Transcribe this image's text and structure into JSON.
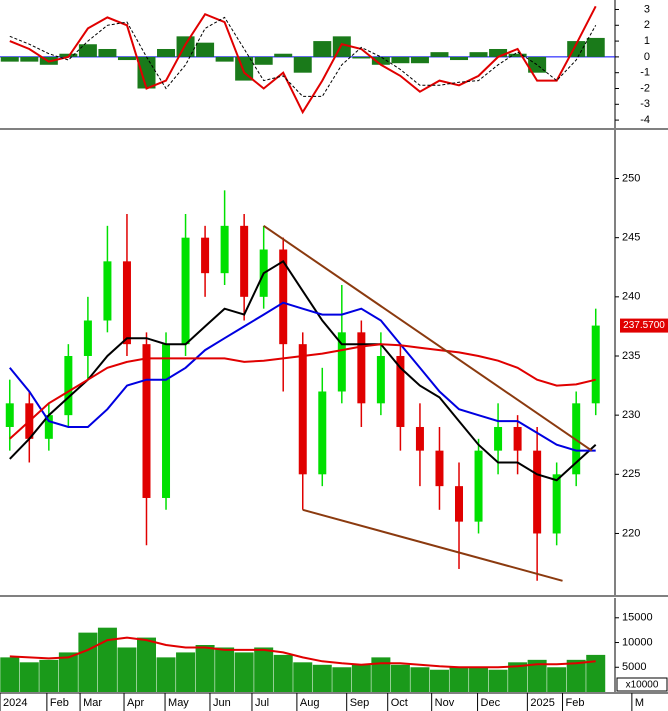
{
  "chart_data": [
    {
      "type": "macd",
      "ylim": [
        -4.5,
        3.6
      ],
      "yticks": [
        3,
        2,
        1,
        0,
        -1,
        -2,
        -3,
        -4
      ],
      "zero_line_color": "#0000ff",
      "series": [
        {
          "kind": "bar",
          "color": "#1a7a1a",
          "values": [
            -0.3,
            -0.3,
            -0.5,
            0.2,
            0.8,
            0.5,
            -0.2,
            -2,
            0.5,
            1.3,
            0.9,
            -0.3,
            -1.5,
            -0.5,
            0.2,
            -1,
            1,
            1.3,
            -0.1,
            -0.5,
            -0.4,
            -0.4,
            0.3,
            -0.2,
            0.3,
            0.5,
            0.2,
            -1,
            0,
            1,
            1.2
          ]
        },
        {
          "kind": "line",
          "color": "#e00000",
          "values": [
            1,
            0.5,
            -0.3,
            0,
            1.8,
            2.5,
            2,
            -2,
            -1.5,
            0.8,
            2.7,
            2.2,
            -1,
            -2,
            -1,
            -3.5,
            -1.5,
            0.8,
            0.5,
            -0.5,
            -1.2,
            -2.2,
            -1.5,
            -1.8,
            -1.2,
            0,
            0.5,
            -1.5,
            -1.5,
            0.8,
            3.2
          ]
        },
        {
          "kind": "dashed",
          "color": "#000000",
          "values": [
            1.3,
            0.8,
            0.2,
            -0.2,
            1,
            2,
            2.2,
            0,
            -2,
            -0.5,
            1.8,
            2.5,
            0.5,
            -1.5,
            -1.2,
            -2.5,
            -2.5,
            -0.5,
            0.6,
            0,
            -0.8,
            -1.8,
            -1.8,
            -1.6,
            -1.5,
            -0.5,
            0.3,
            -0.5,
            -1.5,
            -0.2,
            2
          ]
        }
      ]
    },
    {
      "type": "candlestick",
      "ylim": [
        214.8,
        254.1
      ],
      "yticks": [
        220,
        225,
        230,
        235,
        240,
        245,
        250
      ],
      "up_color": "#00e000",
      "down_color": "#e00000",
      "open": [
        229,
        231,
        228,
        230,
        235,
        238,
        243,
        236,
        223,
        236,
        245,
        242,
        246,
        240,
        244,
        236,
        225,
        232,
        237,
        231,
        235,
        229,
        227,
        224,
        221,
        227,
        229,
        227,
        220,
        225,
        231
      ],
      "high": [
        233,
        232,
        231,
        236,
        240,
        246,
        247,
        237,
        237,
        247,
        246,
        249,
        247,
        246,
        245,
        237,
        234,
        241,
        238,
        237,
        236,
        231,
        229,
        226,
        228,
        231,
        230,
        229,
        226,
        232,
        239
      ],
      "low": [
        227,
        226,
        227,
        229,
        233,
        237,
        235,
        219,
        222,
        235,
        240,
        241,
        238,
        239,
        232,
        222,
        224,
        231,
        229,
        230,
        227,
        224,
        222,
        217,
        220,
        225,
        225,
        216,
        219,
        224,
        230
      ],
      "close": [
        231,
        228,
        230,
        235,
        238,
        243,
        236,
        223,
        236,
        245,
        242,
        246,
        240,
        244,
        236,
        225,
        232,
        237,
        231,
        235,
        229,
        227,
        224,
        221,
        227,
        229,
        227,
        220,
        225,
        231,
        237.57
      ],
      "last_price": 237.57,
      "last_price_label": "237.5700",
      "last_price_color": "#e00000",
      "series": [
        {
          "color": "#000000",
          "values": [
            226.3,
            228,
            230,
            231.5,
            233,
            235,
            236.5,
            236.5,
            236,
            236,
            237.5,
            239,
            238.5,
            242,
            243,
            240.5,
            238,
            236,
            236,
            236,
            234,
            232.5,
            231.5,
            229.5,
            227.5,
            226,
            226,
            225,
            224.5,
            226,
            227.5
          ]
        },
        {
          "color": "#0000e0",
          "values": [
            234,
            232,
            229.5,
            229,
            229,
            230.5,
            232.5,
            233,
            233,
            234,
            235.5,
            236.5,
            237.5,
            238.5,
            239.5,
            239,
            238.5,
            238.5,
            239,
            238,
            236,
            234,
            232,
            230.5,
            230,
            229.5,
            229.5,
            228.5,
            227.5,
            227,
            227
          ]
        },
        {
          "color": "#e00000",
          "values": [
            228,
            229.5,
            231,
            232,
            233,
            234,
            234.5,
            234.8,
            234.8,
            234.8,
            234.8,
            234.8,
            234.5,
            234.6,
            234.8,
            235,
            235.2,
            235.5,
            235.8,
            236,
            235.9,
            235.7,
            235.5,
            235.3,
            235,
            234.6,
            234,
            233,
            232.5,
            232.6,
            233
          ]
        }
      ],
      "trendlines": [
        {
          "color": "#8b3a0f",
          "x": [
            27,
            60.6
          ],
          "y": [
            246,
            227
          ]
        },
        {
          "color": "#8b3a0f",
          "x": [
            31,
            57.6
          ],
          "y": [
            222,
            216
          ]
        }
      ]
    },
    {
      "type": "bar",
      "ylim": [
        0,
        19000
      ],
      "yticks": [
        5000,
        10000,
        15000
      ],
      "unit_label": "x10000",
      "color": "#1a9a1a",
      "ma_color": "#e00000",
      "x": [
        1,
        3,
        5,
        7,
        9,
        11,
        13,
        15,
        17,
        19,
        21,
        23,
        25,
        27,
        29,
        31,
        33,
        35,
        37,
        39,
        41,
        43,
        45,
        47,
        49,
        51,
        53,
        55,
        57,
        59,
        61
      ],
      "xlim": [
        0,
        68.4
      ],
      "xticks": [
        {
          "value": 0,
          "label": "2024"
        },
        {
          "value": 4.8,
          "label": "Feb"
        },
        {
          "value": 8.2,
          "label": "Mar"
        },
        {
          "value": 12.7,
          "label": "Apr"
        },
        {
          "value": 16.9,
          "label": "May"
        },
        {
          "value": 21.5,
          "label": "Jun"
        },
        {
          "value": 25.8,
          "label": "Jul"
        },
        {
          "value": 30.4,
          "label": "Aug"
        },
        {
          "value": 35.5,
          "label": "Sep"
        },
        {
          "value": 39.7,
          "label": "Oct"
        },
        {
          "value": 44.2,
          "label": "Nov"
        },
        {
          "value": 48.9,
          "label": "Dec"
        },
        {
          "value": 54,
          "label": "2025"
        },
        {
          "value": 57.6,
          "label": "Feb"
        },
        {
          "value": 64.7,
          "label": "M"
        }
      ],
      "values": [
        7000,
        6000,
        6500,
        8000,
        12000,
        13000,
        9000,
        11000,
        7000,
        8000,
        9500,
        9000,
        8000,
        9000,
        7500,
        6000,
        5500,
        5000,
        5500,
        7000,
        5500,
        5000,
        4500,
        5000,
        5000,
        4500,
        6000,
        6500,
        5000,
        6500,
        7500
      ],
      "ma": [
        7200,
        7000,
        6800,
        7000,
        8500,
        10500,
        11000,
        10500,
        9500,
        9000,
        9000,
        8500,
        8500,
        8500,
        8000,
        7000,
        6200,
        5800,
        5500,
        5800,
        5800,
        5500,
        5200,
        5000,
        5000,
        5000,
        5200,
        5600,
        5600,
        5800,
        6200
      ]
    }
  ]
}
